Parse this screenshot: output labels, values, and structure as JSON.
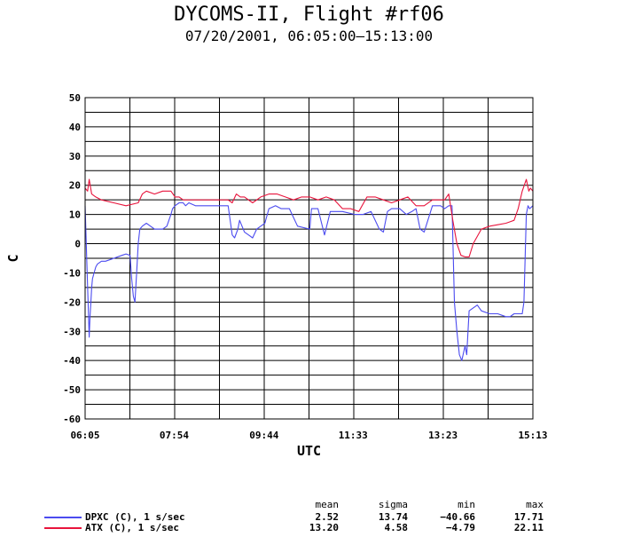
{
  "header": {
    "title": "DYCOMS-II, Flight #rf06",
    "subtitle": "07/20/2001, 06:05:00–15:13:00"
  },
  "legend": {
    "stat_headers": [
      "mean",
      "sigma",
      "min",
      "max"
    ],
    "rows": [
      {
        "label": "DPXC (C), 1 s/sec",
        "color": "#4b4bef",
        "mean": "2.52",
        "sigma": "13.74",
        "min": "−40.66",
        "max": "17.71"
      },
      {
        "label": "ATX (C), 1 s/sec",
        "color": "#e8143c",
        "mean": "13.20",
        "sigma": "4.58",
        "min": "−4.79",
        "max": "22.11"
      }
    ]
  },
  "chart_data": {
    "type": "line",
    "title": "DYCOMS-II, Flight #rf06",
    "subtitle": "07/20/2001, 06:05:00–15:13:00",
    "xlabel": "UTC",
    "ylabel": "C",
    "xlim": [
      "06:05",
      "15:13"
    ],
    "ylim": [
      -60,
      50
    ],
    "x_ticks": [
      "06:05",
      "07:54",
      "09:44",
      "11:33",
      "13:23",
      "15:13"
    ],
    "y_ticks": [
      50,
      40,
      30,
      20,
      10,
      0,
      -10,
      -20,
      -30,
      -40,
      -50,
      -60
    ],
    "grid": true,
    "series": [
      {
        "name": "DPXC (C), 1 s/sec",
        "color": "#4b4bef",
        "x": [
          "06:05",
          "06:07",
          "06:10",
          "06:11",
          "06:12",
          "06:13",
          "06:14",
          "06:16",
          "06:18",
          "06:20",
          "06:25",
          "06:30",
          "06:40",
          "06:50",
          "06:55",
          "07:00",
          "07:02",
          "07:04",
          "07:06",
          "07:08",
          "07:10",
          "07:12",
          "07:15",
          "07:20",
          "07:25",
          "07:30",
          "07:40",
          "07:45",
          "07:50",
          "07:52",
          "07:55",
          "08:00",
          "08:05",
          "08:08",
          "08:12",
          "08:20",
          "08:30",
          "08:50",
          "09:00",
          "09:05",
          "09:08",
          "09:12",
          "09:14",
          "09:20",
          "09:25",
          "09:30",
          "09:35",
          "09:40",
          "09:45",
          "09:50",
          "09:58",
          "10:05",
          "10:15",
          "10:25",
          "10:40",
          "10:42",
          "10:50",
          "10:58",
          "11:05",
          "11:20",
          "11:35",
          "11:45",
          "11:55",
          "12:05",
          "12:10",
          "12:15",
          "12:20",
          "12:30",
          "12:38",
          "12:45",
          "12:50",
          "12:55",
          "13:00",
          "13:10",
          "13:20",
          "13:25",
          "13:30",
          "13:34",
          "13:37",
          "13:40",
          "13:43",
          "13:46",
          "13:50",
          "13:52",
          "13:55",
          "14:00",
          "14:05",
          "14:10",
          "14:20",
          "14:30",
          "14:40",
          "14:45",
          "14:50",
          "14:55",
          "15:00",
          "15:02",
          "15:05",
          "15:07",
          "15:09",
          "15:13"
        ],
        "y": [
          13,
          -5,
          -32,
          -25,
          -20,
          -15,
          -12,
          -10,
          -8,
          -7,
          -6,
          -6,
          -5,
          -4,
          -3.5,
          -4,
          -12,
          -18,
          -20,
          -10,
          0,
          5,
          6,
          7,
          6,
          5,
          5,
          6,
          10,
          12,
          13,
          14,
          14,
          13,
          14,
          13,
          13,
          13,
          13,
          3,
          2,
          5,
          8,
          4,
          3,
          2,
          5,
          6,
          7,
          12,
          13,
          12,
          12,
          6,
          5,
          12,
          12,
          3,
          11,
          11,
          10,
          10,
          11,
          5,
          4,
          11,
          12,
          12,
          10,
          11,
          12,
          5,
          4,
          13,
          13,
          12,
          13,
          13,
          -20,
          -30,
          -38,
          -40,
          -35,
          -38,
          -23,
          -22,
          -21,
          -23,
          -24,
          -24,
          -25,
          -25,
          -24,
          -24,
          -24,
          -20,
          10,
          13,
          12,
          13
        ]
      },
      {
        "name": "ATX (C), 1 s/sec",
        "color": "#e8143c",
        "x": [
          "06:05",
          "06:08",
          "06:10",
          "06:13",
          "06:18",
          "06:25",
          "06:40",
          "06:55",
          "07:10",
          "07:15",
          "07:20",
          "07:30",
          "07:40",
          "07:50",
          "07:55",
          "08:00",
          "08:05",
          "08:20",
          "08:40",
          "09:00",
          "09:05",
          "09:10",
          "09:15",
          "09:20",
          "09:30",
          "09:40",
          "09:50",
          "10:00",
          "10:10",
          "10:20",
          "10:30",
          "10:40",
          "10:50",
          "11:00",
          "11:10",
          "11:20",
          "11:30",
          "11:40",
          "11:50",
          "12:00",
          "12:10",
          "12:20",
          "12:30",
          "12:40",
          "12:50",
          "13:00",
          "13:10",
          "13:20",
          "13:25",
          "13:30",
          "13:35",
          "13:40",
          "13:45",
          "13:50",
          "13:55",
          "14:00",
          "14:10",
          "14:20",
          "14:30",
          "14:40",
          "14:45",
          "14:50",
          "14:55",
          "15:00",
          "15:05",
          "15:08",
          "15:10",
          "15:13"
        ],
        "y": [
          19,
          18,
          22,
          17,
          16,
          15,
          14,
          13,
          14,
          17,
          18,
          17,
          18,
          18,
          16,
          16,
          15,
          15,
          15,
          15,
          14,
          17,
          16,
          16,
          14,
          16,
          17,
          17,
          16,
          15,
          16,
          16,
          15,
          16,
          15,
          12,
          12,
          11,
          16,
          16,
          15,
          14,
          15,
          16,
          13,
          13,
          15,
          15,
          15,
          17,
          8,
          0,
          -4,
          -4.5,
          -4.5,
          0,
          5,
          6,
          6.5,
          7,
          7.5,
          8,
          12,
          18,
          22,
          18,
          19,
          18
        ]
      }
    ]
  }
}
